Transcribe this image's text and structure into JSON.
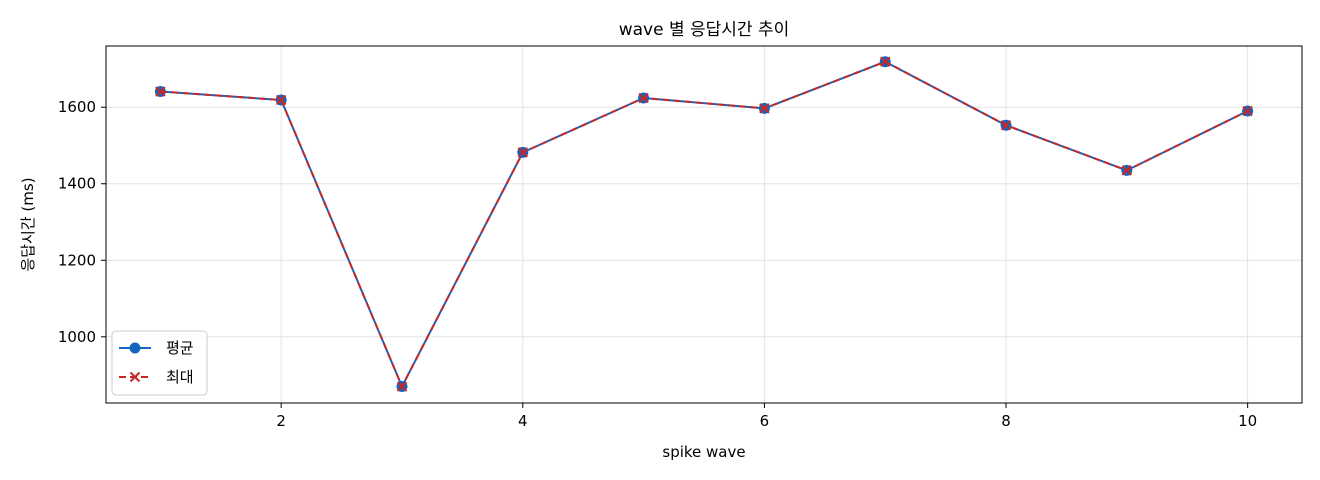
{
  "chart_data": {
    "type": "line",
    "title": "wave 별 응답시간 추이",
    "xlabel": "spike wave",
    "ylabel": "응답시간 (ms)",
    "x": [
      1,
      2,
      3,
      4,
      5,
      6,
      7,
      8,
      9,
      10
    ],
    "xlim": [
      0.55,
      10.45
    ],
    "ylim": [
      827,
      1760
    ],
    "x_ticks": [
      2,
      4,
      6,
      8,
      10
    ],
    "y_ticks": [
      1000,
      1200,
      1400,
      1600
    ],
    "grid": true,
    "legend_position": "lower-left",
    "series": [
      {
        "name": "평균",
        "values": [
          1641,
          1619,
          870,
          1482,
          1624,
          1597,
          1719,
          1553,
          1435,
          1590
        ],
        "color": "#1565c0",
        "line_style": "solid",
        "marker": "circle"
      },
      {
        "name": "최대",
        "values": [
          1641,
          1619,
          870,
          1482,
          1624,
          1597,
          1719,
          1553,
          1435,
          1590
        ],
        "color": "#c62828",
        "line_style": "dashed",
        "marker": "x"
      }
    ]
  }
}
